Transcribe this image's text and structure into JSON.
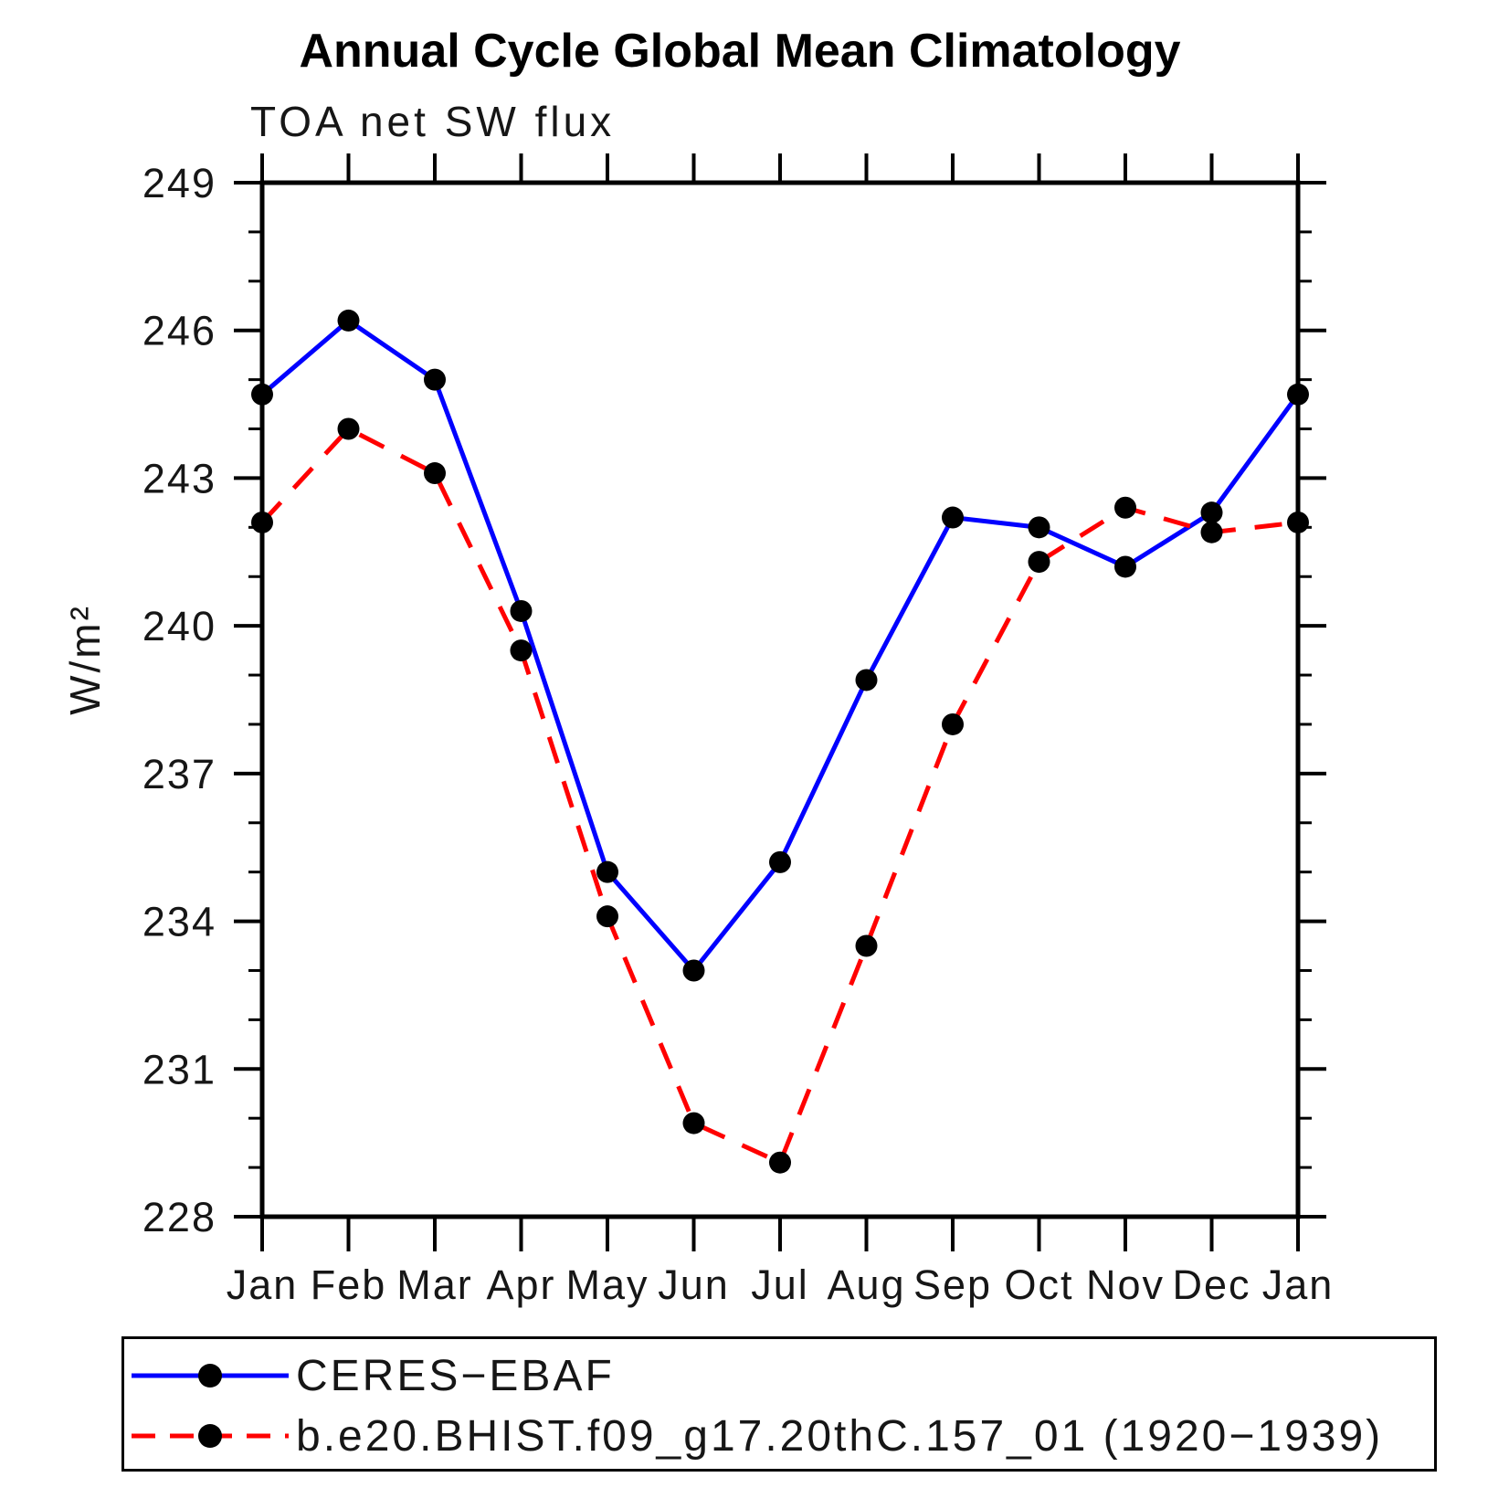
{
  "header": {
    "title": "Annual Cycle Global Mean Climatology",
    "subtitle": "TOA net SW flux"
  },
  "chart_data": {
    "type": "line",
    "title": "Annual Cycle Global Mean Climatology",
    "subtitle": "TOA net SW flux",
    "xlabel": "",
    "ylabel": "W/m²",
    "categories": [
      "Jan",
      "Feb",
      "Mar",
      "Apr",
      "May",
      "Jun",
      "Jul",
      "Aug",
      "Sep",
      "Oct",
      "Nov",
      "Dec",
      "Jan"
    ],
    "ylim": [
      228,
      249
    ],
    "y_major_ticks": [
      228,
      231,
      234,
      237,
      240,
      243,
      246,
      249
    ],
    "y_minor_step": 1,
    "grid": false,
    "legend_position": "bottom",
    "series": [
      {
        "name": "CERES−EBAF",
        "color": "#0000ff",
        "style": "solid",
        "marker": "black-dot",
        "values": [
          244.7,
          246.2,
          245.0,
          240.3,
          235.0,
          233.0,
          235.2,
          238.9,
          242.2,
          242.0,
          241.2,
          242.3,
          244.7
        ]
      },
      {
        "name": "b.e20.BHIST.f09_g17.20thC.157_01 (1920−1939)",
        "color": "#ff0000",
        "style": "dashed",
        "marker": "black-dot",
        "values": [
          242.1,
          244.0,
          243.1,
          239.5,
          234.1,
          229.9,
          229.1,
          233.5,
          238.0,
          241.3,
          242.4,
          241.9,
          242.1
        ]
      }
    ]
  },
  "colors": {
    "axis": "#000000",
    "text": "#161616",
    "background": "#ffffff",
    "marker": "#000000"
  }
}
